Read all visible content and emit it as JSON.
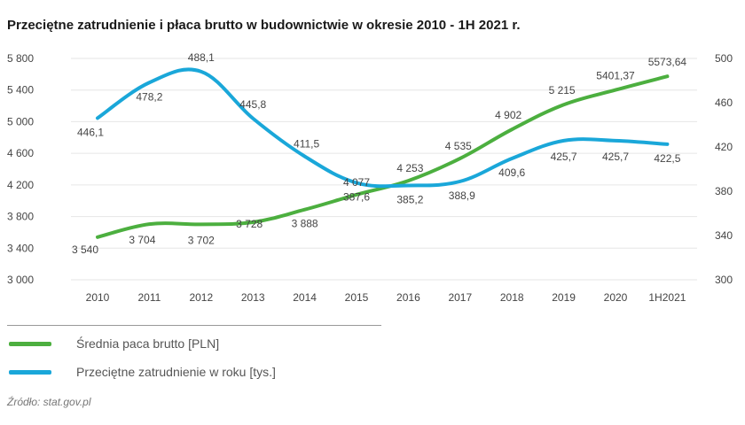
{
  "title": "Przeciętne zatrudnienie i płaca brutto w budownictwie w okresie 2010 - 1H 2021 r.",
  "source": "Źródło: stat.gov.pl",
  "chart_data": {
    "type": "line",
    "categories": [
      "2010",
      "2011",
      "2012",
      "2013",
      "2014",
      "2015",
      "2016",
      "2017",
      "2018",
      "2019",
      "2020",
      "1H2021"
    ],
    "y_left": {
      "ticks": [
        "3 000",
        "3 400",
        "3 800",
        "4 200",
        "4 600",
        "5 000",
        "5 400",
        "5 800"
      ],
      "ylim": [
        3000,
        5800
      ]
    },
    "y_right": {
      "ticks": [
        "300",
        "340",
        "380",
        "420",
        "460",
        "500"
      ],
      "ylim": [
        300,
        500
      ]
    },
    "grid": true,
    "legend_position": "bottom-left",
    "series": [
      {
        "name": "Średnia paca brutto [PLN]",
        "axis": "left",
        "color": "#4caf3f",
        "values": [
          3540,
          3704,
          3702,
          3728,
          3888,
          4077,
          4253,
          4535,
          4902,
          5215,
          5401.37,
          5573.64
        ],
        "labels": [
          "3 540",
          "3 704",
          "3 702",
          "3 728",
          "3 888",
          "4 077",
          "4 253",
          "4 535",
          "4 902",
          "5 215",
          "5401,37",
          "5573,64"
        ]
      },
      {
        "name": "Przeciętne zatrudnienie w roku [tys.]",
        "axis": "right",
        "color": "#1aa7d9",
        "values": [
          446.1,
          478.2,
          488.1,
          445.8,
          411.5,
          387.6,
          385.2,
          388.9,
          409.6,
          425.7,
          425.7,
          422.5
        ],
        "labels": [
          "446,1",
          "478,2",
          "488,1",
          "445,8",
          "411,5",
          "387,6",
          "385,2",
          "388,9",
          "409,6",
          "425,7",
          "425,7",
          "422,5"
        ]
      }
    ]
  }
}
